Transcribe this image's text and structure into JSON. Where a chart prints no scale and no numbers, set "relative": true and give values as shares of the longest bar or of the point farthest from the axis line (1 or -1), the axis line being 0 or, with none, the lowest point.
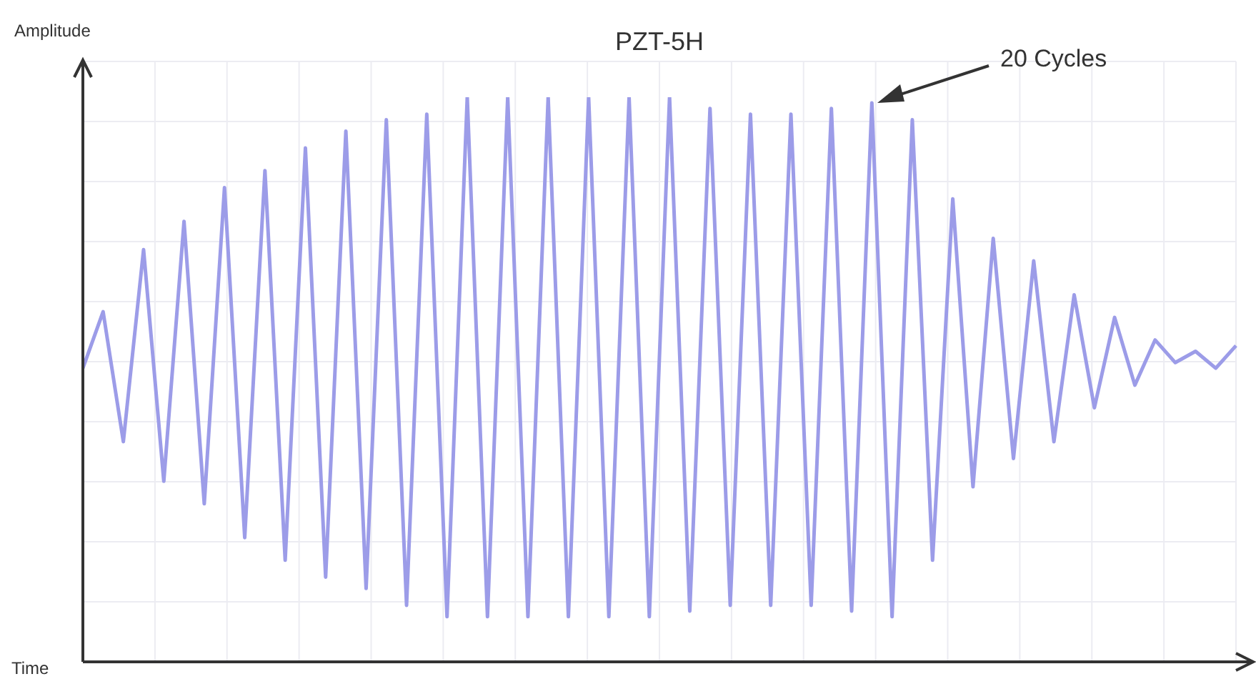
{
  "chart_data": {
    "type": "line",
    "title": "PZT-5H",
    "ylabel": "Amplitude",
    "xlabel": "Time",
    "relative": true,
    "grid": true,
    "marker": "none",
    "line_style": "solid",
    "annotations": [
      "20 Cycles"
    ],
    "categories": [
      null,
      null,
      null,
      null,
      null,
      null,
      null,
      null,
      null,
      null,
      null,
      null,
      null,
      null,
      null,
      null,
      null,
      null,
      null,
      null,
      null,
      null,
      null,
      null,
      null,
      null,
      null,
      null,
      null,
      null,
      null,
      null,
      null,
      null,
      null,
      null,
      null,
      null,
      null,
      null,
      null,
      null,
      null,
      null,
      null,
      null,
      null,
      null,
      null,
      null,
      null,
      null,
      null,
      null,
      null,
      null,
      null,
      null
    ],
    "series": [
      {
        "color": "#9c9ce8",
        "values": [
          0.52,
          0.62,
          0.39,
          0.73,
          0.32,
          0.78,
          0.28,
          0.84,
          0.22,
          0.87,
          0.18,
          0.91,
          0.15,
          0.94,
          0.13,
          0.96,
          0.1,
          0.97,
          0.08,
          1.0,
          0.08,
          1.0,
          0.08,
          1.0,
          0.08,
          1.0,
          0.08,
          1.0,
          0.08,
          1.0,
          0.09,
          0.98,
          0.1,
          0.97,
          0.1,
          0.97,
          0.1,
          0.98,
          0.09,
          0.99,
          0.08,
          0.96,
          0.18,
          0.82,
          0.31,
          0.75,
          0.36,
          0.71,
          0.39,
          0.65,
          0.45,
          0.61,
          0.49,
          0.57,
          0.53,
          0.55,
          0.52,
          0.56
        ]
      }
    ]
  }
}
